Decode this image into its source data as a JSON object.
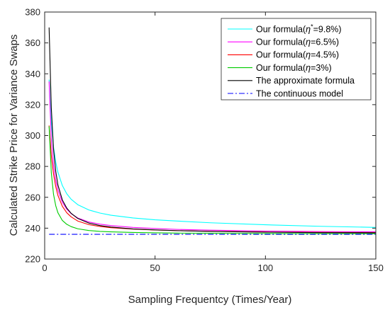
{
  "chart_data": {
    "type": "line",
    "title": "",
    "xlabel": "Sampling Frequentcy (Times/Year)",
    "ylabel": "Calculated Strike Price for Variance Swaps",
    "xlim": [
      0,
      150
    ],
    "ylim": [
      220,
      380
    ],
    "xticks": [
      0,
      50,
      100,
      150
    ],
    "yticks": [
      220,
      240,
      260,
      280,
      300,
      320,
      340,
      360,
      380
    ],
    "grid": false,
    "legend_position": "top-right",
    "x": [
      2,
      3,
      4,
      5,
      6,
      8,
      10,
      12,
      15,
      20,
      25,
      30,
      40,
      50,
      60,
      75,
      100,
      125,
      150
    ],
    "series": [
      {
        "name_parts": [
          "Our formula(",
          "η",
          "*",
          "=9.8%)"
        ],
        "color": "#00ffff",
        "style": "solid",
        "values": [
          336.2,
          308.2,
          292.7,
          283.0,
          276.3,
          267.6,
          262.3,
          258.7,
          255.2,
          251.8,
          249.8,
          248.4,
          246.6,
          245.4,
          244.6,
          243.5,
          242.2,
          241.2,
          240.5
        ]
      },
      {
        "name_parts": [
          "Our formula(",
          "η",
          "",
          "=6.5%)"
        ],
        "color": "#ff00ff",
        "style": "solid",
        "values": [
          335.0,
          298.0,
          281.0,
          271.1,
          264.6,
          256.8,
          252.3,
          249.4,
          246.6,
          244.0,
          242.6,
          241.7,
          240.5,
          239.8,
          239.2,
          238.7,
          238.1,
          237.8,
          237.6
        ]
      },
      {
        "name_parts": [
          "Our formula(",
          "η",
          "",
          "=4.5%)"
        ],
        "color": "#ff0000",
        "style": "solid",
        "values": [
          306.5,
          287.0,
          275.1,
          267.0,
          261.2,
          254.2,
          250.0,
          247.3,
          244.6,
          242.3,
          241.1,
          240.3,
          239.4,
          238.8,
          238.4,
          238.0,
          237.5,
          237.3,
          237.1
        ]
      },
      {
        "name_parts": [
          "Our formula(",
          "η",
          "",
          "=3%)"
        ],
        "color": "#00cc00",
        "style": "solid",
        "values": [
          306.0,
          276.0,
          262.0,
          254.6,
          250.0,
          245.0,
          242.5,
          241.0,
          239.6,
          238.5,
          237.9,
          237.6,
          237.2,
          237.0,
          236.8,
          236.7,
          236.5,
          236.4,
          236.4
        ]
      },
      {
        "name_parts": [
          "The approximate formula",
          "",
          "",
          ""
        ],
        "color": "#000000",
        "style": "solid",
        "values": [
          370.0,
          318.0,
          291.5,
          277.0,
          268.0,
          258.3,
          253.0,
          249.6,
          246.3,
          243.3,
          241.7,
          240.7,
          239.5,
          238.9,
          238.4,
          237.9,
          237.4,
          237.1,
          237.0
        ]
      },
      {
        "name_parts": [
          "The continuous model",
          "",
          "",
          ""
        ],
        "color": "#0000ff",
        "style": "dashdot",
        "values": [
          236.0,
          236.0,
          236.0,
          236.0,
          236.0,
          236.0,
          236.0,
          236.0,
          236.0,
          236.0,
          236.0,
          236.0,
          236.0,
          236.0,
          236.0,
          236.0,
          236.0,
          236.0,
          236.0
        ]
      }
    ]
  }
}
